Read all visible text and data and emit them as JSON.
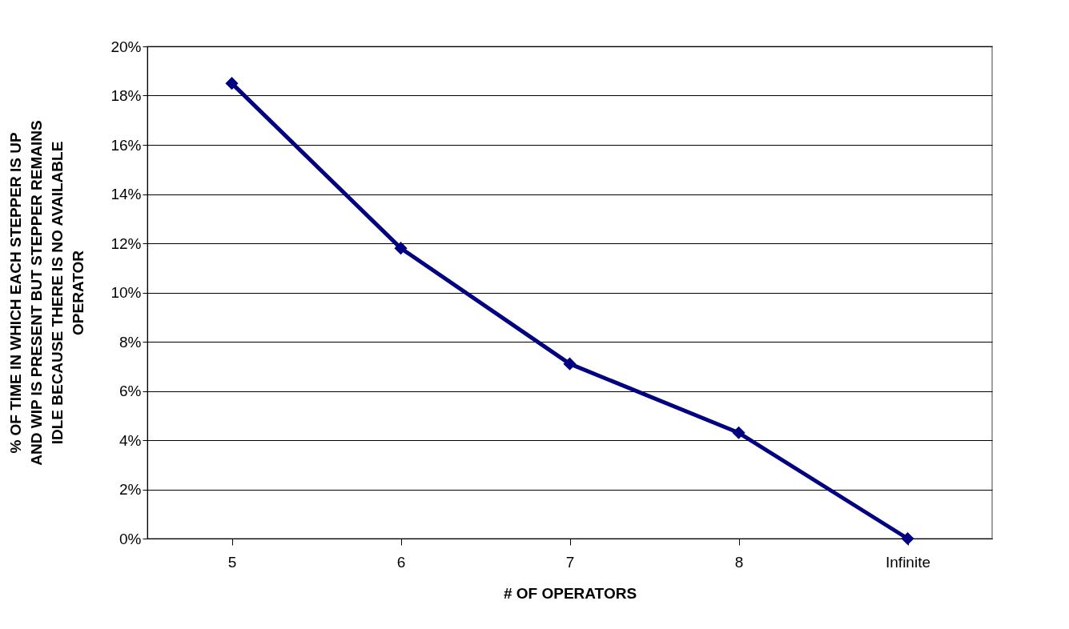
{
  "chart_data": {
    "type": "line",
    "xlabel": "# OF OPERATORS",
    "ylabel": "% OF TIME IN WHICH EACH STEPPER IS UP AND WIP IS PRESENT BUT STEPPER REMAINS IDLE BECAUSE THERE IS NO AVAILABLE OPERATOR",
    "categories": [
      "5",
      "6",
      "7",
      "8",
      "Infinite"
    ],
    "series": [
      {
        "color": "#000080",
        "values": [
          18.5,
          11.8,
          7.1,
          4.3,
          0
        ]
      }
    ],
    "ylim": [
      0,
      20
    ],
    "yticks": [
      {
        "value": 0,
        "label": "0%"
      },
      {
        "value": 2,
        "label": "2%"
      },
      {
        "value": 4,
        "label": "4%"
      },
      {
        "value": 6,
        "label": "6%"
      },
      {
        "value": 8,
        "label": "8%"
      },
      {
        "value": 10,
        "label": "10%"
      },
      {
        "value": 12,
        "label": "12%"
      },
      {
        "value": 14,
        "label": "14%"
      },
      {
        "value": 16,
        "label": "16%"
      },
      {
        "value": 18,
        "label": "18%"
      },
      {
        "value": 20,
        "label": "20%"
      }
    ],
    "grid": "y",
    "marker": "diamond",
    "line_style": "solid"
  }
}
